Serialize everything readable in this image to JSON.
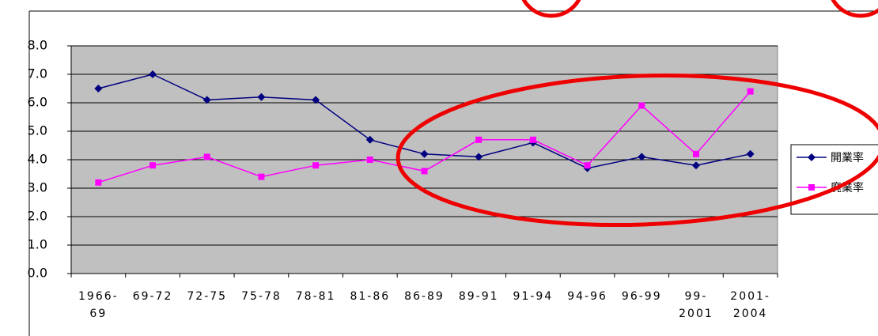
{
  "chart_data": {
    "type": "line",
    "categories": [
      "1966-69",
      "69-72",
      "72-75",
      "75-78",
      "78-81",
      "81-86",
      "86-89",
      "89-91",
      "91-94",
      "94-96",
      "96-99",
      "99-2001",
      "2001-2004"
    ],
    "series": [
      {
        "name": "開業率",
        "color": "#000080",
        "values": [
          6.5,
          7.0,
          6.1,
          6.2,
          6.1,
          4.7,
          4.2,
          4.1,
          4.6,
          3.7,
          4.1,
          3.8,
          4.2
        ]
      },
      {
        "name": "廃業率",
        "color": "#ff00ff",
        "values": [
          3.2,
          3.8,
          4.1,
          3.4,
          3.8,
          4.0,
          3.6,
          4.7,
          4.7,
          3.8,
          5.9,
          4.2,
          6.4
        ]
      }
    ],
    "ylim": [
      0,
      8
    ],
    "yticks": [
      {
        "value": 0,
        "label": "0.0"
      },
      {
        "value": 1,
        "label": "1.0"
      },
      {
        "value": 2,
        "label": "2.0"
      },
      {
        "value": 3,
        "label": "3.0"
      },
      {
        "value": 4,
        "label": "4.0"
      },
      {
        "value": 5,
        "label": "5.0"
      },
      {
        "value": 6,
        "label": "6.0"
      },
      {
        "value": 7,
        "label": "7.0"
      },
      {
        "value": 8,
        "label": "8.0"
      }
    ],
    "grid": true,
    "legend": "right"
  }
}
